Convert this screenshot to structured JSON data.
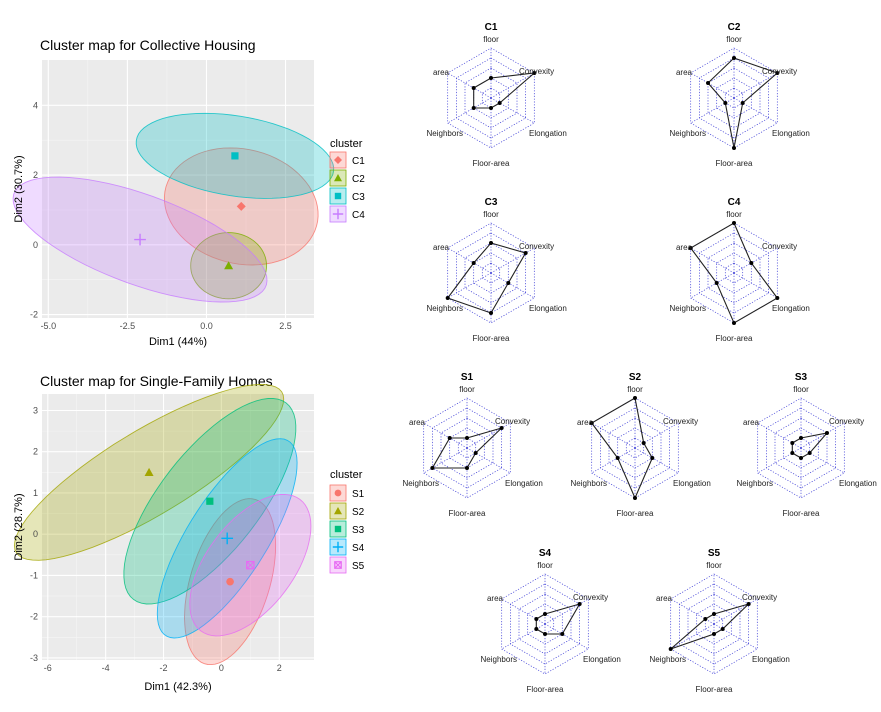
{
  "chart_data": [
    {
      "type": "scatter",
      "title": "Cluster map for Collective Housing",
      "xlabel": "Dim1 (44%)",
      "ylabel": "Dim2 (30.7%)",
      "xlim": [
        -5.2,
        3.4
      ],
      "ylim": [
        -2.1,
        5.3
      ],
      "xticks": [
        -5.0,
        -2.5,
        0.0,
        2.5
      ],
      "xtick_labels": [
        "-5.0",
        "-2.5",
        "0.0",
        "2.5"
      ],
      "yticks": [
        -2,
        0,
        2,
        4
      ],
      "ytick_labels": [
        "-2",
        "0",
        "2",
        "4"
      ],
      "grid": true,
      "legend_title": "cluster",
      "legend_position": "right",
      "series": [
        {
          "name": "C1",
          "color": "#F8766D",
          "marker": "diamond",
          "center": [
            1.1,
            1.1
          ],
          "ellipse": {
            "rx": 1.65,
            "ry": 2.45,
            "angle": 80
          }
        },
        {
          "name": "C2",
          "color": "#7CAE00",
          "marker": "triangle",
          "center": [
            0.7,
            -0.6
          ],
          "ellipse": {
            "rx": 1.2,
            "ry": 0.95,
            "angle": 0
          }
        },
        {
          "name": "C3",
          "color": "#00BFC4",
          "marker": "square",
          "center": [
            0.9,
            2.55
          ],
          "ellipse": {
            "rx": 1.15,
            "ry": 3.15,
            "angle": 82
          }
        },
        {
          "name": "C4",
          "color": "#C77CFF",
          "marker": "plus",
          "center": [
            -2.1,
            0.15
          ],
          "ellipse": {
            "rx": 4.2,
            "ry": 1.3,
            "angle": -18
          }
        }
      ]
    },
    {
      "type": "scatter",
      "title": "Cluster map for Single-Family Homes",
      "xlabel": "Dim1 (42.3%)",
      "ylabel": "Dim2 (28.7%)",
      "xlim": [
        -6.2,
        3.2
      ],
      "ylim": [
        -3.05,
        3.4
      ],
      "xticks": [
        -6,
        -4,
        -2,
        0,
        2
      ],
      "xtick_labels": [
        "-6",
        "-4",
        "-2",
        "0",
        "2"
      ],
      "yticks": [
        -3,
        -2,
        -1,
        0,
        1,
        2,
        3
      ],
      "ytick_labels": [
        "-3",
        "-2",
        "-1",
        "0",
        "1",
        "2",
        "3"
      ],
      "grid": true,
      "legend_title": "cluster",
      "legend_position": "right",
      "series": [
        {
          "name": "S1",
          "color": "#F8766D",
          "marker": "circle",
          "center": [
            0.3,
            -1.15
          ],
          "ellipse": {
            "rx": 2.2,
            "ry": 1.3,
            "angle": 60
          }
        },
        {
          "name": "S2",
          "color": "#A3A500",
          "marker": "triangle",
          "center": [
            -2.5,
            1.5
          ],
          "ellipse": {
            "rx": 5.0,
            "ry": 1.1,
            "angle": 22
          }
        },
        {
          "name": "S3",
          "color": "#00BF7D",
          "marker": "square",
          "center": [
            -0.4,
            0.8
          ],
          "ellipse": {
            "rx": 3.6,
            "ry": 1.45,
            "angle": 38
          }
        },
        {
          "name": "S4",
          "color": "#00B0F6",
          "marker": "plus",
          "center": [
            0.2,
            -0.1
          ],
          "ellipse": {
            "rx": 3.2,
            "ry": 1.2,
            "angle": 45
          }
        },
        {
          "name": "S5",
          "color": "#E76BF3",
          "marker": "square-cross",
          "center": [
            1.0,
            -0.75
          ],
          "ellipse": {
            "rx": 2.4,
            "ry": 1.25,
            "angle": 35
          }
        }
      ]
    }
  ],
  "radar": {
    "axes": [
      "floor",
      "Convexity",
      "Elongation",
      "Floor-area",
      "Neighbors",
      "area"
    ],
    "max": 5,
    "clusters": [
      {
        "name": "C1",
        "values": [
          2,
          5,
          1,
          1,
          2,
          2
        ]
      },
      {
        "name": "C2",
        "values": [
          4,
          5,
          1,
          5,
          1,
          3
        ]
      },
      {
        "name": "C3",
        "values": [
          3,
          4,
          2,
          4,
          5,
          2
        ]
      },
      {
        "name": "C4",
        "values": [
          5,
          2,
          5,
          5,
          2,
          5
        ]
      },
      {
        "name": "S1",
        "values": [
          1,
          4,
          1,
          2,
          4,
          2
        ]
      },
      {
        "name": "S2",
        "values": [
          5,
          1,
          2,
          5,
          2,
          5
        ]
      },
      {
        "name": "S3",
        "values": [
          1,
          3,
          1,
          1,
          1,
          1
        ]
      },
      {
        "name": "S4",
        "values": [
          1,
          4,
          2,
          1,
          1,
          1
        ]
      },
      {
        "name": "S5",
        "values": [
          1,
          4,
          1,
          1,
          5,
          1
        ]
      }
    ]
  }
}
